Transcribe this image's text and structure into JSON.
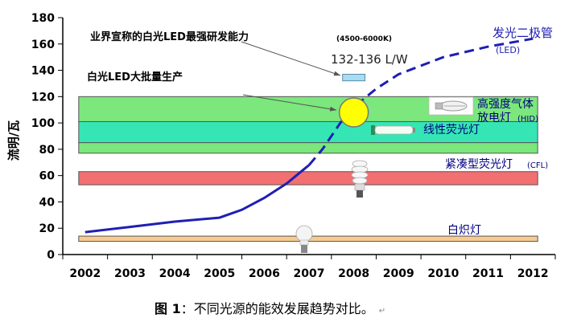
{
  "chart_data": {
    "type": "line",
    "ylabel": "流明/瓦",
    "xlabel": "",
    "ylim": [
      0,
      180
    ],
    "yticks": [
      0,
      20,
      40,
      60,
      80,
      100,
      120,
      140,
      160,
      180
    ],
    "categories": [
      "2002",
      "2003",
      "2004",
      "2005",
      "2006",
      "2007",
      "2008",
      "2009",
      "2010",
      "2011",
      "2012"
    ],
    "grid": false,
    "series": [
      {
        "name": "发光二极管",
        "name_suffix": "(LED)",
        "color": "#1f1fb4",
        "points": [
          {
            "x": 2002,
            "y": 17,
            "style": "solid"
          },
          {
            "x": 2003,
            "y": 21,
            "style": "solid"
          },
          {
            "x": 2004,
            "y": 25,
            "style": "solid"
          },
          {
            "x": 2005,
            "y": 28,
            "style": "solid"
          },
          {
            "x": 2005.5,
            "y": 34,
            "style": "solid"
          },
          {
            "x": 2006,
            "y": 43,
            "style": "solid"
          },
          {
            "x": 2006.5,
            "y": 54,
            "style": "solid"
          },
          {
            "x": 2007,
            "y": 68,
            "style": "solid"
          },
          {
            "x": 2007.3,
            "y": 80,
            "style": "dashed"
          },
          {
            "x": 2007.7,
            "y": 100,
            "style": "dashed"
          },
          {
            "x": 2008,
            "y": 112,
            "style": "dashed"
          },
          {
            "x": 2008.5,
            "y": 126,
            "style": "dashed"
          },
          {
            "x": 2009,
            "y": 137,
            "style": "dashed"
          },
          {
            "x": 2010,
            "y": 150,
            "style": "dashed"
          },
          {
            "x": 2011,
            "y": 158,
            "style": "dashed"
          },
          {
            "x": 2012,
            "y": 164,
            "style": "dashed"
          }
        ]
      }
    ],
    "bands": [
      {
        "label": "高强度气体",
        "label2": "放电灯",
        "suffix": "(HID)",
        "y_from": 101,
        "y_to": 120,
        "color": "#7ce77c"
      },
      {
        "label": "线性荧光灯",
        "suffix": "",
        "y_from": 85,
        "y_to": 101,
        "color": "#35e6b4"
      },
      {
        "label": "",
        "suffix": "",
        "y_from": 77,
        "y_to": 85,
        "color": "#7ce77c"
      },
      {
        "label": "紧凑型荧光灯",
        "suffix": "(CFL)",
        "y_from": 53,
        "y_to": 63,
        "color": "#f26f72"
      },
      {
        "label": "白炽灯",
        "suffix": "",
        "y_from": 10,
        "y_to": 14,
        "color": "#f6cb92"
      }
    ],
    "target_box": {
      "x_from": 2007.75,
      "x_to": 2008.25,
      "y_from": 132,
      "y_to": 137,
      "color": "#a7dcf2"
    },
    "highlight_point": {
      "x": 2008,
      "y": 108,
      "color": "#ffff00"
    },
    "annotations": [
      {
        "text": "业界宣称的白光LED最强研发能力",
        "bold": true
      },
      {
        "text": "(4500-6000K)",
        "bold": true
      },
      {
        "text": "132-136 L/W",
        "bold": false
      },
      {
        "text": "白光LED大批量生产",
        "bold": true
      }
    ]
  },
  "caption": {
    "label": "图 1",
    "colon": "：",
    "text": "不同光源的能效发展趋势对比。",
    "mark": "↵"
  }
}
